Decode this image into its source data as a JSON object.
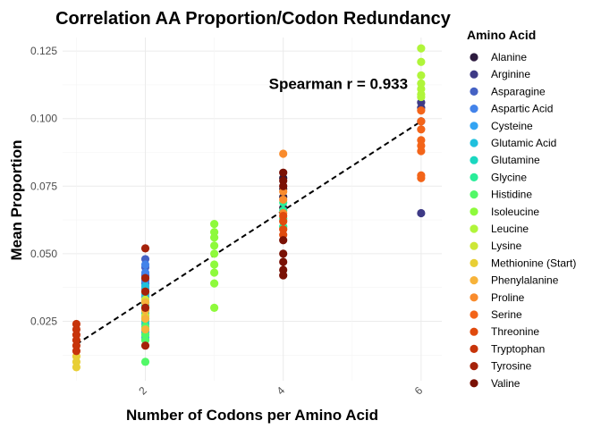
{
  "chart_data": {
    "type": "scatter",
    "title": "Correlation AA Proportion/Codon Redundancy",
    "xlabel": "Number of Codons per Amino Acid",
    "ylabel": "Mean Proportion",
    "xlim": [
      0.8,
      6.3
    ],
    "ylim": [
      0.003,
      0.13
    ],
    "x_ticks": [
      2,
      4,
      6
    ],
    "x_tick_labels": [
      "2",
      "4",
      "6"
    ],
    "y_ticks": [
      0.025,
      0.05,
      0.075,
      0.1,
      0.125
    ],
    "y_tick_labels": [
      "0.025",
      "0.050",
      "0.075",
      "0.100",
      "0.125"
    ],
    "grid": true,
    "legend": {
      "title": "Amino Acid",
      "position": "right"
    },
    "annotation": {
      "text": "Spearman r = 0.933",
      "x": 4.8,
      "y": 0.111
    },
    "trendline": {
      "style": "dashed",
      "x": [
        1,
        6
      ],
      "y": [
        0.0165,
        0.099
      ]
    },
    "series": [
      {
        "name": "Alanine",
        "color": "#2d1b3f",
        "codons": 4,
        "values": [
          0.078,
          0.074,
          0.071,
          0.067
        ]
      },
      {
        "name": "Arginine",
        "color": "#3e3a86",
        "codons": 6,
        "values": [
          0.065,
          0.099,
          0.104,
          0.106
        ]
      },
      {
        "name": "Asparagine",
        "color": "#4562c4",
        "codons": 2,
        "values": [
          0.048,
          0.045,
          0.042,
          0.039
        ]
      },
      {
        "name": "Aspartic Acid",
        "color": "#4383ea",
        "codons": 2,
        "values": [
          0.046,
          0.043,
          0.04,
          0.037,
          0.034
        ]
      },
      {
        "name": "Cysteine",
        "color": "#33a4f3",
        "codons": 2,
        "values": [
          0.03,
          0.027,
          0.024,
          0.021,
          0.019
        ]
      },
      {
        "name": "Glutamic Acid",
        "color": "#1fc0dd",
        "codons": 2,
        "values": [
          0.038,
          0.035,
          0.032,
          0.029,
          0.026
        ]
      },
      {
        "name": "Glutamine",
        "color": "#1ad7c0",
        "codons": 2,
        "values": [
          0.031,
          0.028,
          0.025,
          0.022
        ]
      },
      {
        "name": "Glycine",
        "color": "#29ed99",
        "codons": 4,
        "values": [
          0.069,
          0.066,
          0.063,
          0.06
        ]
      },
      {
        "name": "Histidine",
        "color": "#52f868",
        "codons": 2,
        "values": [
          0.01,
          0.018,
          0.02,
          0.023,
          0.026
        ]
      },
      {
        "name": "Isoleucine",
        "color": "#8efa3c",
        "codons": 3,
        "values": [
          0.03,
          0.039,
          0.043,
          0.046,
          0.05,
          0.053,
          0.056,
          0.058,
          0.061
        ]
      },
      {
        "name": "Leucine",
        "color": "#b0f53a",
        "codons": 6,
        "values": [
          0.126,
          0.121,
          0.116,
          0.113,
          0.111,
          0.109,
          0.108
        ]
      },
      {
        "name": "Lysine",
        "color": "#cde737",
        "codons": 2,
        "values": [
          0.036,
          0.033,
          0.03,
          0.027
        ]
      },
      {
        "name": "Methionine (Start)",
        "color": "#e8cf35",
        "codons": 1,
        "values": [
          0.008,
          0.01,
          0.012
        ]
      },
      {
        "name": "Phenylalanine",
        "color": "#f7b33a",
        "codons": 2,
        "values": [
          0.032,
          0.029,
          0.026,
          0.022
        ]
      },
      {
        "name": "Proline",
        "color": "#f98b2c",
        "codons": 4,
        "values": [
          0.087,
          0.073,
          0.07,
          0.065
        ]
      },
      {
        "name": "Serine",
        "color": "#f36419",
        "codons": 6,
        "values": [
          0.103,
          0.099,
          0.096,
          0.092,
          0.09,
          0.088,
          0.079,
          0.078
        ]
      },
      {
        "name": "Threonine",
        "color": "#e04a0d",
        "codons": 4,
        "values": [
          0.064,
          0.062,
          0.059,
          0.057
        ]
      },
      {
        "name": "Tryptophan",
        "color": "#c7340a",
        "codons": 1,
        "values": [
          0.014,
          0.016,
          0.018,
          0.02,
          0.022,
          0.024
        ]
      },
      {
        "name": "Tyrosine",
        "color": "#a5220a",
        "codons": 2,
        "values": [
          0.052,
          0.041,
          0.036,
          0.03,
          0.016
        ]
      },
      {
        "name": "Valine",
        "color": "#7a1105",
        "codons": 4,
        "values": [
          0.08,
          0.077,
          0.075,
          0.055,
          0.05,
          0.047,
          0.044,
          0.042
        ]
      }
    ]
  }
}
